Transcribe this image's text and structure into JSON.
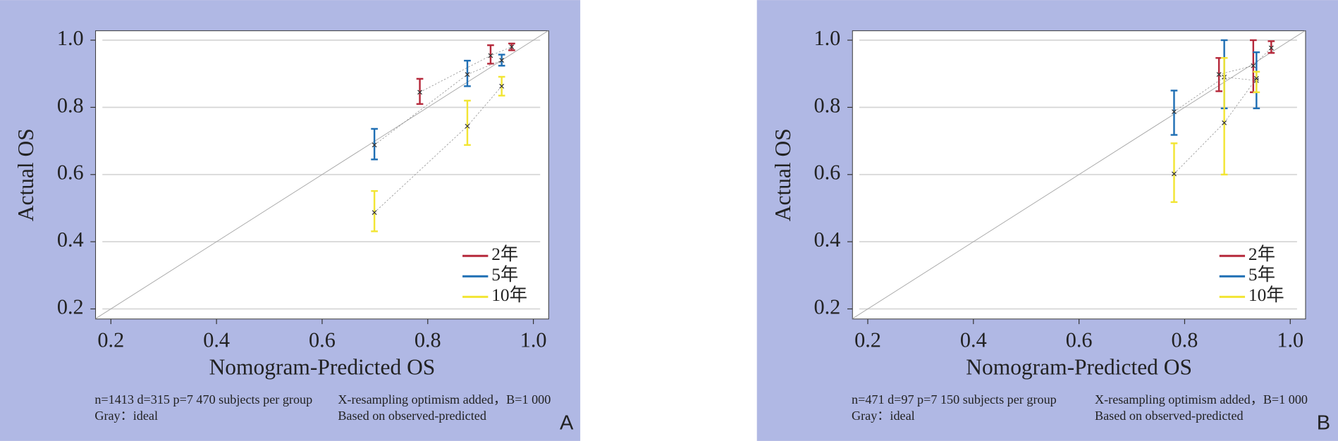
{
  "chart_data": [
    {
      "type": "calibration",
      "panel": "A",
      "x_label": "Nomogram-Predicted OS",
      "y_label": "Actual OS",
      "notes": [
        "n=1413 d=315 p=7 470 subjects per group",
        "Gray：ideal",
        "X-resampling optimism added，B=1 000",
        "Based on observed-predicted"
      ],
      "xlim": [
        0.171,
        1.029
      ],
      "ylim": [
        0.17,
        1.028
      ],
      "xticks": [
        0.2,
        0.4,
        0.6,
        0.8,
        {
          "value": 1,
          "label": "1.0"
        }
      ],
      "yticks": [
        0.2,
        0.4,
        0.6,
        0.8,
        {
          "value": 1,
          "label": "1.0"
        }
      ],
      "grid": true,
      "legend": "lower right",
      "series": [
        {
          "name": "2年",
          "color": "#b5283a",
          "x": [
            0.785,
            0.919,
            0.959
          ],
          "values": [
            0.845,
            0.954,
            0.98
          ],
          "lower": [
            0.81,
            0.93,
            0.97
          ],
          "upper": [
            0.885,
            0.985,
            0.99
          ]
        },
        {
          "name": "5年",
          "color": "#1f6fb4",
          "x": [
            0.699,
            0.875,
            0.94
          ],
          "values": [
            0.688,
            0.898,
            0.94
          ],
          "lower": [
            0.645,
            0.863,
            0.924
          ],
          "upper": [
            0.736,
            0.939,
            0.957
          ]
        },
        {
          "name": "10年",
          "color": "#f2e533",
          "x": [
            0.699,
            0.875,
            0.94
          ],
          "values": [
            0.487,
            0.744,
            0.863
          ],
          "lower": [
            0.431,
            0.688,
            0.835
          ],
          "upper": [
            0.551,
            0.82,
            0.891
          ]
        }
      ]
    },
    {
      "type": "calibration",
      "panel": "B",
      "x_label": "Nomogram-Predicted OS",
      "y_label": "Actual OS",
      "notes": [
        "n=471 d=97 p=7 150 subjects per group",
        "Gray：ideal",
        "X-resampling optimism added，B=1 000",
        "Based on observed-predicted"
      ],
      "xlim": [
        0.171,
        1.029
      ],
      "ylim": [
        0.17,
        1.028
      ],
      "xticks": [
        0.2,
        0.4,
        0.6,
        0.8,
        {
          "value": 1,
          "label": "1.0"
        }
      ],
      "yticks": [
        0.2,
        0.4,
        0.6,
        0.8,
        {
          "value": 1,
          "label": "1.0"
        }
      ],
      "grid": true,
      "legend": "lower right",
      "series": [
        {
          "name": "2年",
          "color": "#b5283a",
          "x": [
            0.865,
            0.93,
            0.964
          ],
          "values": [
            0.898,
            0.924,
            0.977
          ],
          "lower": [
            0.848,
            0.845,
            0.962
          ],
          "upper": [
            0.947,
            1.0,
            0.997
          ]
        },
        {
          "name": "5年",
          "color": "#1f6fb4",
          "x": [
            0.78,
            0.875,
            0.936
          ],
          "values": [
            0.787,
            0.89,
            0.88
          ],
          "lower": [
            0.718,
            0.797,
            0.797
          ],
          "upper": [
            0.85,
            1.0,
            0.964
          ]
        },
        {
          "name": "10年",
          "color": "#f2e533",
          "x": [
            0.78,
            0.875,
            0.936
          ],
          "values": [
            0.602,
            0.754,
            0.886
          ],
          "lower": [
            0.518,
            0.6,
            0.845
          ],
          "upper": [
            0.693,
            0.947,
            0.906
          ]
        }
      ]
    }
  ]
}
